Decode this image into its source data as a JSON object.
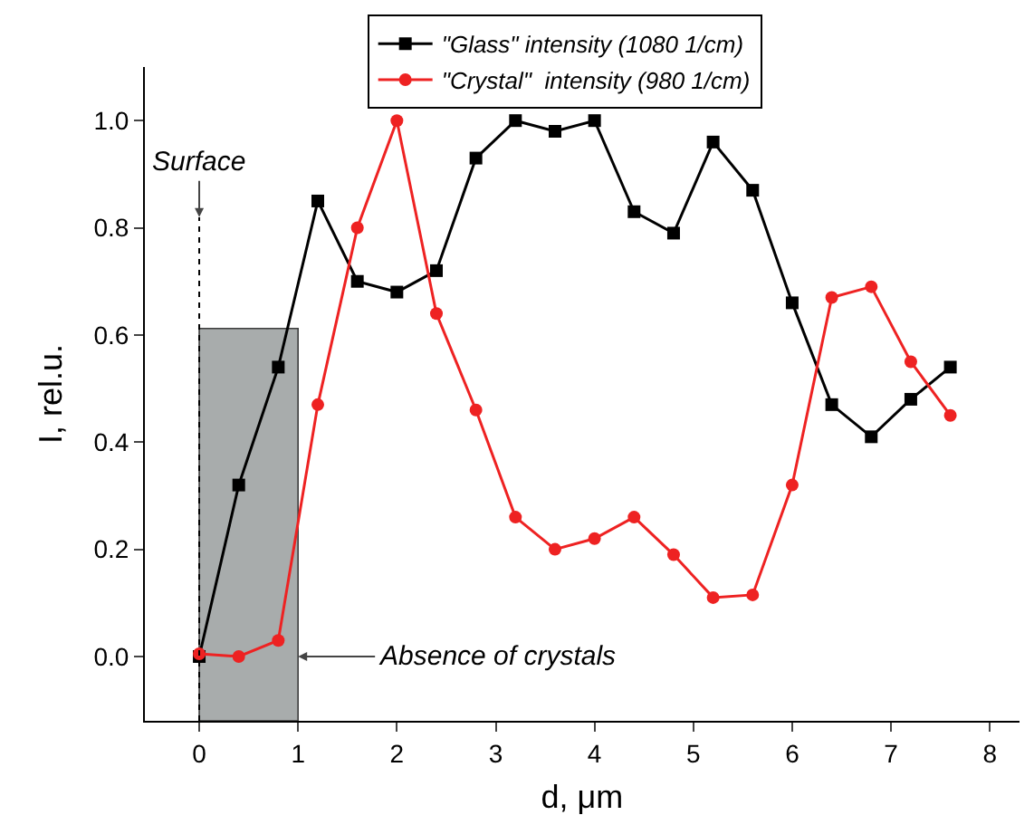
{
  "chart_data": {
    "type": "line",
    "xlabel": "d, μm",
    "ylabel": "I, rel.u.",
    "x": [
      0,
      0.4,
      0.8,
      1.2,
      1.6,
      2.0,
      2.4,
      2.8,
      3.2,
      3.6,
      4.0,
      4.4,
      4.8,
      5.2,
      5.6,
      6.0,
      6.4,
      6.8,
      7.2,
      7.6
    ],
    "series": [
      {
        "name": "\"Glass\" intensity (1080 1/cm)",
        "color": "#000000",
        "marker": "square",
        "values": [
          0.0,
          0.32,
          0.54,
          0.85,
          0.7,
          0.68,
          0.72,
          0.93,
          1.0,
          0.98,
          1.0,
          0.83,
          0.79,
          0.96,
          0.87,
          0.66,
          0.47,
          0.41,
          0.48,
          0.54
        ]
      },
      {
        "name": "\"Crystal\"  intensity (980 1/cm)",
        "color": "#ee2222",
        "marker": "circle",
        "values": [
          0.005,
          0.0,
          0.03,
          0.47,
          0.8,
          1.0,
          0.64,
          0.46,
          0.26,
          0.2,
          0.22,
          0.26,
          0.19,
          0.11,
          0.115,
          0.32,
          0.67,
          0.69,
          0.55,
          0.45
        ]
      }
    ],
    "xlim": [
      -0.55,
      8.3
    ],
    "ylim": [
      -0.12,
      1.1
    ],
    "xticks": [
      0,
      1,
      2,
      3,
      4,
      5,
      6,
      7,
      8
    ],
    "yticks": [
      {
        "value": 0,
        "label": "0.0"
      },
      {
        "value": 0.2,
        "label": "0.2"
      },
      {
        "value": 0.4,
        "label": "0.4"
      },
      {
        "value": 0.6,
        "label": "0.6"
      },
      {
        "value": 0.8,
        "label": "0.8"
      },
      {
        "value": 1.0,
        "label": "1.0"
      }
    ],
    "bands": [
      {
        "axis": "x",
        "from": 0,
        "to": 1,
        "color": "#a4a8a8"
      }
    ],
    "ref_lines": [
      {
        "axis": "x",
        "value": 0,
        "line_style": "dotted"
      }
    ],
    "annotations": [
      {
        "text": "Surface",
        "x": 0,
        "y": 0.82
      },
      {
        "text": "Absence of crystals",
        "x": 1,
        "y": 0.0
      }
    ],
    "grid": false,
    "legend": "top",
    "line_style": "solid"
  }
}
